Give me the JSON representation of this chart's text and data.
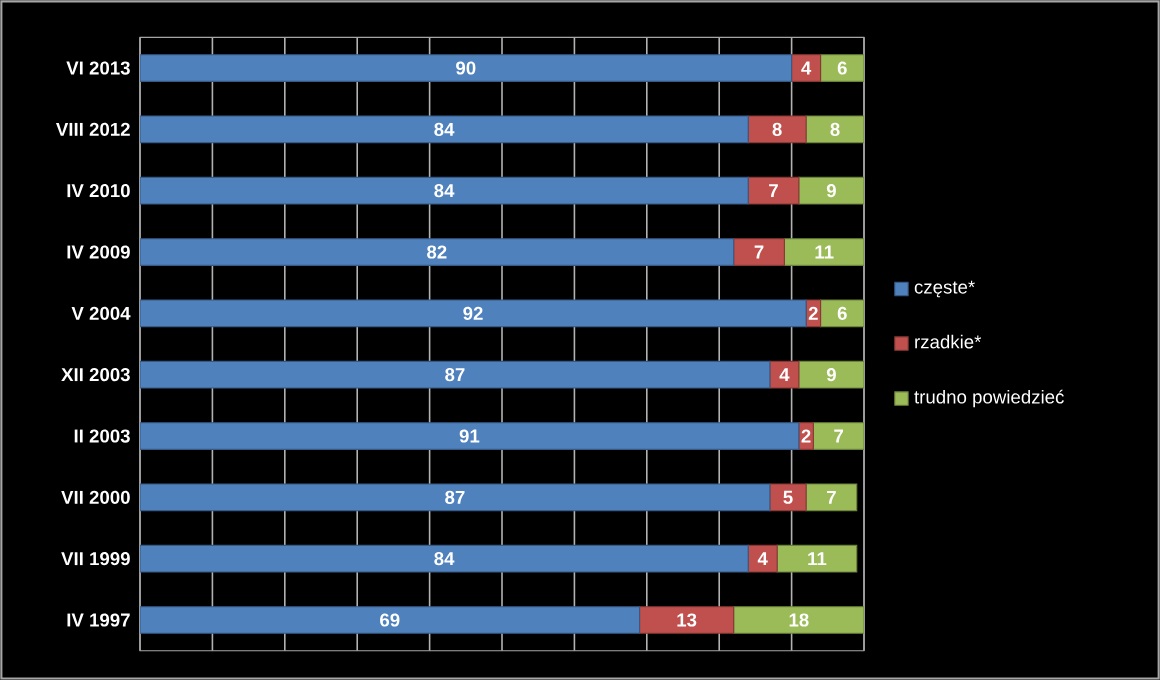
{
  "chart_data": {
    "type": "bar",
    "orientation": "horizontal",
    "stacked": true,
    "categories": [
      "VI 2013",
      "VIII 2012",
      "IV 2010",
      "IV 2009",
      "V 2004",
      "XII 2003",
      "II 2003",
      "VII 2000",
      "VII 1999",
      "IV 1997"
    ],
    "series": [
      {
        "name": "częste*",
        "color": "#4f81bd",
        "values": [
          90,
          84,
          84,
          82,
          92,
          87,
          91,
          87,
          84,
          69
        ]
      },
      {
        "name": "rzadkie*",
        "color": "#c0504d",
        "values": [
          4,
          8,
          7,
          7,
          2,
          4,
          2,
          5,
          4,
          13
        ]
      },
      {
        "name": "trudno powiedzieć",
        "color": "#9bbb59",
        "values": [
          6,
          8,
          9,
          11,
          6,
          9,
          7,
          7,
          11,
          18
        ]
      }
    ],
    "tick_labels": "y",
    "grid": "x",
    "legend": "right",
    "data_labels": true
  }
}
